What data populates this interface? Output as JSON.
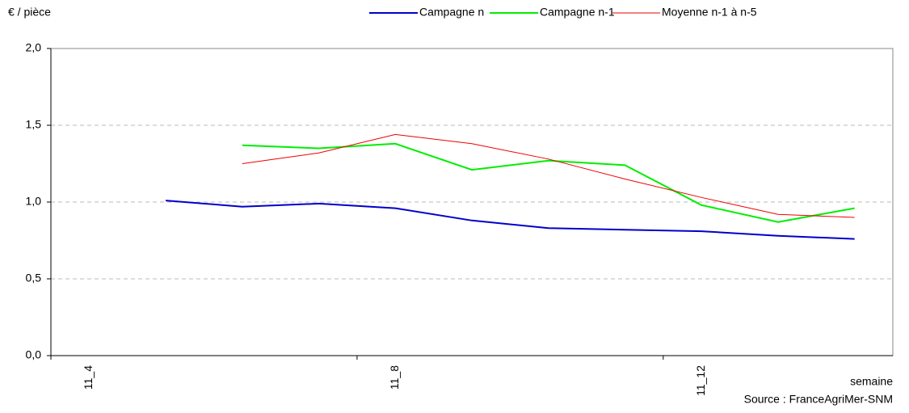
{
  "chart_data": {
    "type": "line",
    "y_label": "€ / pièce",
    "x_label": "semaine",
    "source": "Source : FranceAgriMer-SNM",
    "categories": [
      "11_4",
      null,
      null,
      null,
      "11_8",
      null,
      null,
      null,
      "11_12",
      null,
      null
    ],
    "series": [
      {
        "name": "Campagne n",
        "color": "#0000cc",
        "values": [
          null,
          1.01,
          0.97,
          0.99,
          0.96,
          0.88,
          0.83,
          0.82,
          0.81,
          0.78,
          0.76
        ]
      },
      {
        "name": "Campagne n-1",
        "color": "#00ee00",
        "values": [
          null,
          null,
          1.37,
          1.35,
          1.38,
          1.21,
          1.27,
          1.24,
          0.98,
          0.87,
          0.96
        ]
      },
      {
        "name": "Moyenne n-1 à n-5",
        "color": "#ee0000",
        "values": [
          null,
          null,
          1.25,
          1.32,
          1.44,
          1.38,
          1.28,
          1.15,
          1.03,
          0.92,
          0.9
        ]
      }
    ],
    "ylim": [
      0,
      2
    ],
    "yticks": [
      {
        "value": 0,
        "label": "0,0"
      },
      {
        "value": 0.5,
        "label": "0,5"
      },
      {
        "value": 1,
        "label": "1,0"
      },
      {
        "value": 1.5,
        "label": "1,5"
      },
      {
        "value": 2,
        "label": "2,0"
      }
    ],
    "grid": true,
    "legend": "top"
  }
}
